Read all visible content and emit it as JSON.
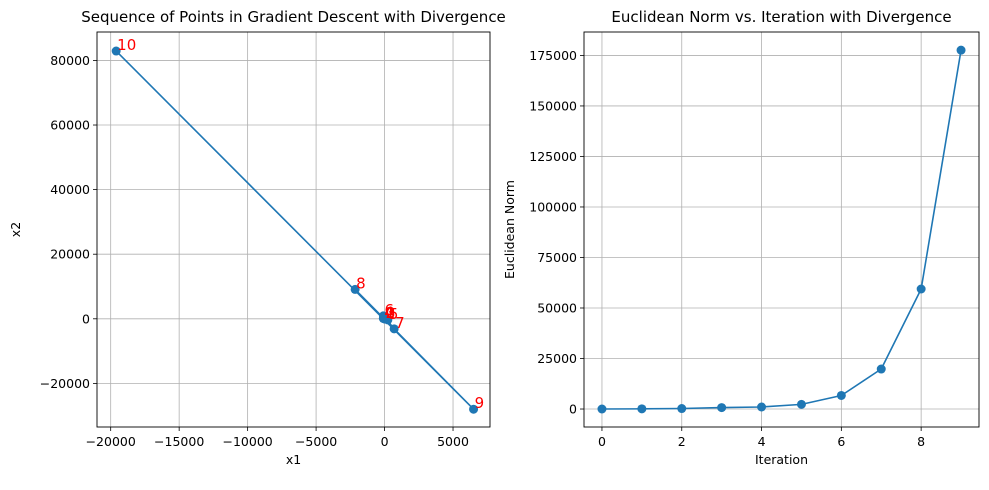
{
  "chart_data": [
    {
      "type": "line",
      "title": "Sequence of Points in Gradient Descent with Divergence",
      "xlabel": "x1",
      "ylabel": "x2",
      "xlim": [
        -21000,
        7700
      ],
      "ylim": [
        -33500,
        88800
      ],
      "xticks": [
        -20000,
        -15000,
        -10000,
        -5000,
        0,
        5000
      ],
      "xtick_labels": [
        "−20000",
        "−15000",
        "−10000",
        "−5000",
        "0",
        "5000"
      ],
      "yticks": [
        -20000,
        0,
        20000,
        40000,
        60000,
        80000
      ],
      "ytick_labels": [
        "−20000",
        "0",
        "20000",
        "40000",
        "60000",
        "80000"
      ],
      "grid": true,
      "marker": "circle",
      "line_color": "#1f77b4",
      "label_color": "#ff0000",
      "series": [
        {
          "x": [
            1,
            2,
            -8,
            30,
            -90,
            240,
            -80,
            700,
            -2150,
            6500,
            -19600
          ],
          "y": [
            1,
            -3,
            12,
            -50,
            120,
            -340,
            900,
            -3100,
            9100,
            -28000,
            82900
          ],
          "point_labels": [
            "0",
            "1",
            "2",
            "3",
            "4",
            "5",
            "6",
            "7",
            "8",
            "9",
            "10"
          ]
        }
      ]
    },
    {
      "type": "line",
      "title": "Euclidean Norm vs. Iteration with Divergence",
      "xlabel": "Iteration",
      "ylabel": "Euclidean Norm",
      "xlim": [
        -0.45,
        9.45
      ],
      "ylim": [
        -8900,
        186600
      ],
      "xticks": [
        0,
        2,
        4,
        6,
        8
      ],
      "xtick_labels": [
        "0",
        "2",
        "4",
        "6",
        "8"
      ],
      "yticks": [
        0,
        25000,
        50000,
        75000,
        100000,
        125000,
        150000,
        175000
      ],
      "ytick_labels": [
        "0",
        "25000",
        "50000",
        "75000",
        "100000",
        "125000",
        "150000",
        "175000"
      ],
      "grid": true,
      "marker": "circle",
      "line_color": "#1f77b4",
      "series": [
        {
          "x": [
            0,
            1,
            2,
            3,
            4,
            5,
            6,
            7,
            8,
            9
          ],
          "y": [
            10,
            80,
            250,
            700,
            1000,
            2300,
            6700,
            19800,
            59400,
            177600
          ]
        }
      ]
    }
  ]
}
